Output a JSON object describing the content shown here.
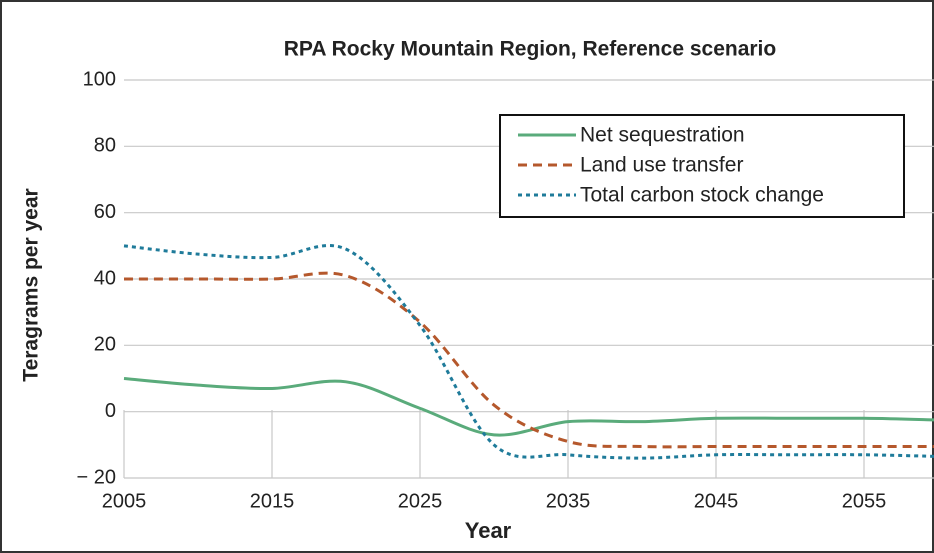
{
  "chart_data": {
    "type": "line",
    "title": "RPA Rocky Mountain Region, Reference scenario",
    "xlabel": "Year",
    "ylabel": "Teragrams per year",
    "x": [
      2005,
      2010,
      2015,
      2020,
      2025,
      2030,
      2035,
      2040,
      2045,
      2050,
      2055,
      2060
    ],
    "series": [
      {
        "name": "Net sequestration",
        "color": "#5aab7b",
        "style": "solid",
        "values": [
          10,
          8,
          7,
          9,
          1,
          -7,
          -3,
          -3,
          -2,
          -2,
          -2,
          -2.5
        ]
      },
      {
        "name": "Land use transfer",
        "color": "#b5582c",
        "style": "dashed",
        "values": [
          40,
          40,
          40,
          41,
          27,
          2,
          -9,
          -10.5,
          -10.5,
          -10.5,
          -10.5,
          -10.5
        ]
      },
      {
        "name": "Total carbon stock change",
        "color": "#1f7b9a",
        "style": "dotted",
        "values": [
          50,
          47.5,
          46.5,
          49,
          26,
          -10,
          -13,
          -14,
          -13,
          -13,
          -13,
          -13.5
        ]
      }
    ],
    "xlim": [
      2005,
      2060
    ],
    "xticks": [
      2005,
      2015,
      2025,
      2035,
      2045,
      2055
    ],
    "ylim": [
      -20,
      100
    ],
    "yticks": [
      {
        "value": -20,
        "label": "− 20"
      },
      0,
      20,
      40,
      60,
      80,
      100
    ],
    "grid": true,
    "legend": "upper right"
  }
}
